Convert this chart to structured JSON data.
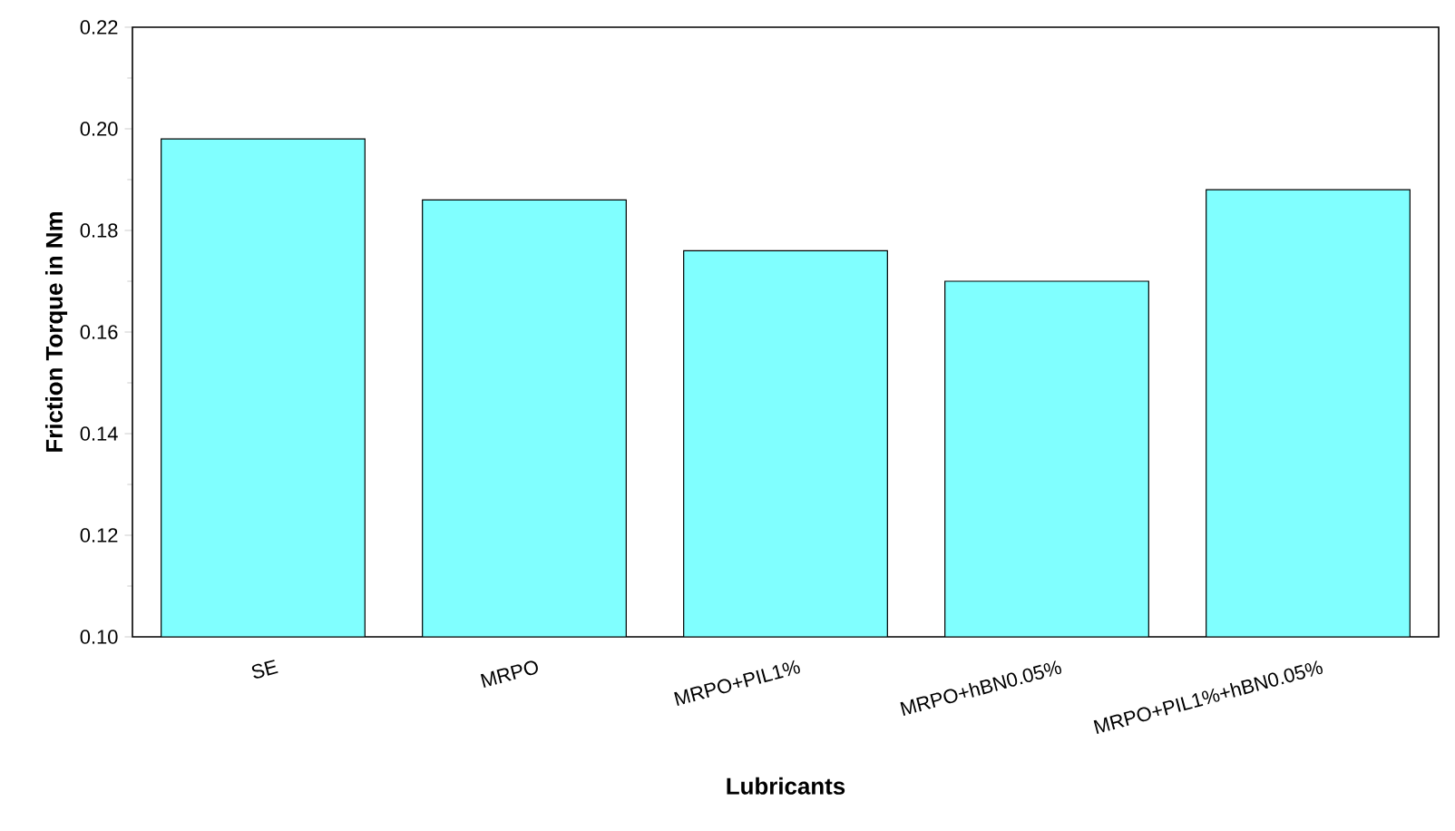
{
  "chart_data": {
    "type": "bar",
    "xlabel": "Lubricants",
    "ylabel": "Friction Torque in Nm",
    "categories": [
      "SE",
      "MRPO",
      "MRPO+PIL1%",
      "MRPO+hBN0.05%",
      "MRPO+PIL1%+hBN0.05%"
    ],
    "values": [
      0.198,
      0.186,
      0.176,
      0.17,
      0.188
    ],
    "color": "#80ffff",
    "ylim": [
      0.1,
      0.22
    ],
    "yticks": [
      {
        "value": 0.1,
        "label": "0.10"
      },
      {
        "value": 0.12,
        "label": "0.12"
      },
      {
        "value": 0.14,
        "label": "0.14"
      },
      {
        "value": 0.16,
        "label": "0.16"
      },
      {
        "value": 0.18,
        "label": "0.18"
      },
      {
        "value": 0.2,
        "label": "0.20"
      },
      {
        "value": 0.22,
        "label": "0.22"
      }
    ],
    "grid": false
  }
}
